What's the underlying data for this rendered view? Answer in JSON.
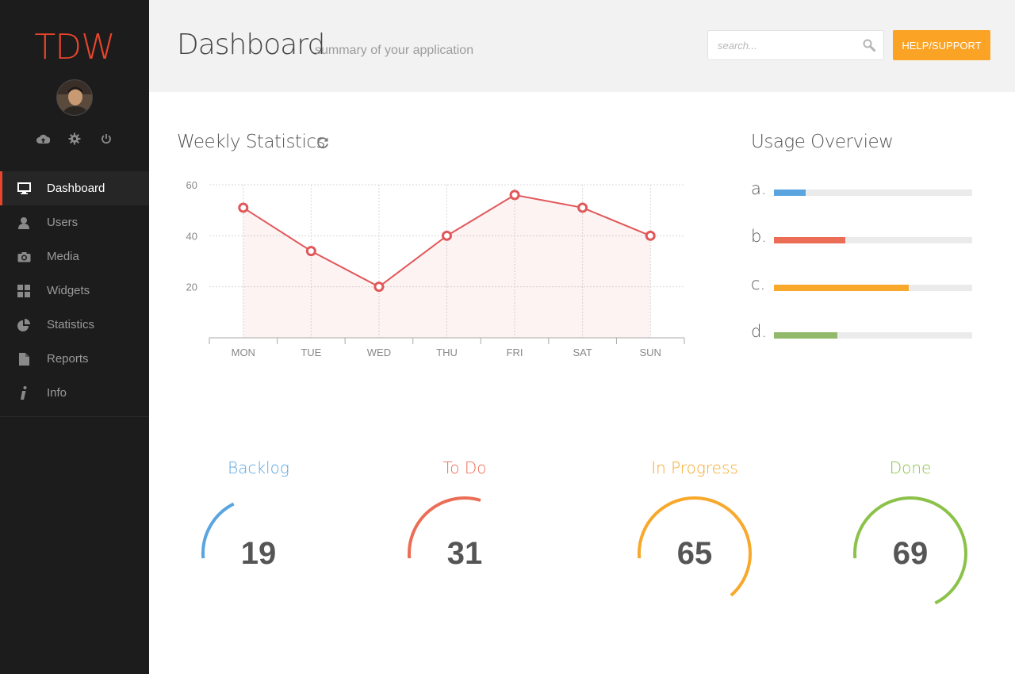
{
  "app": {
    "logo": "TDW",
    "user_icons": [
      "cloud-upload-icon",
      "gear-icon",
      "power-icon"
    ]
  },
  "sidebar": {
    "items": [
      {
        "label": "Dashboard",
        "icon": "monitor-icon",
        "active": true
      },
      {
        "label": "Users",
        "icon": "user-icon"
      },
      {
        "label": "Media",
        "icon": "camera-icon"
      },
      {
        "label": "Widgets",
        "icon": "grid-icon"
      },
      {
        "label": "Statistics",
        "icon": "pie-chart-icon"
      },
      {
        "label": "Reports",
        "icon": "document-icon"
      },
      {
        "label": "Info",
        "icon": "info-icon"
      }
    ]
  },
  "header": {
    "title": "Dashboard",
    "subtitle": "summary of your application",
    "search_placeholder": "search...",
    "search_value": "",
    "help_label": "HELP/SUPPORT"
  },
  "weekly": {
    "title": "Weekly Statistics"
  },
  "chart_data": {
    "type": "area",
    "title": "Weekly Statistics",
    "categories": [
      "MON",
      "TUE",
      "WED",
      "THU",
      "FRI",
      "SAT",
      "SUN"
    ],
    "series": [
      {
        "values": [
          51,
          34,
          20,
          40,
          56,
          51,
          40
        ]
      }
    ],
    "ylim": [
      0,
      60
    ],
    "yticks": [
      20,
      40,
      60
    ],
    "grid": true,
    "color": "#e15759"
  },
  "usage": {
    "title": "Usage Overview",
    "items": [
      {
        "label": "a.",
        "value": 0.16,
        "color": "#5aa5e0"
      },
      {
        "label": "b.",
        "value": 0.36,
        "color": "#ec6d56"
      },
      {
        "label": "c.",
        "value": 0.68,
        "color": "#f8a82b"
      },
      {
        "label": "d.",
        "value": 0.32,
        "color": "#92b96a"
      }
    ]
  },
  "gauges": [
    {
      "label": "Backlog",
      "value": "19",
      "percent": 19,
      "color": "#5aa5e0"
    },
    {
      "label": "To Do",
      "value": "31",
      "percent": 31,
      "color": "#ec6d56"
    },
    {
      "label": "In Progress",
      "value": "65",
      "percent": 65,
      "color": "#f8a82b"
    },
    {
      "label": "Done",
      "value": "69",
      "percent": 69,
      "color": "#8cc24a"
    }
  ]
}
